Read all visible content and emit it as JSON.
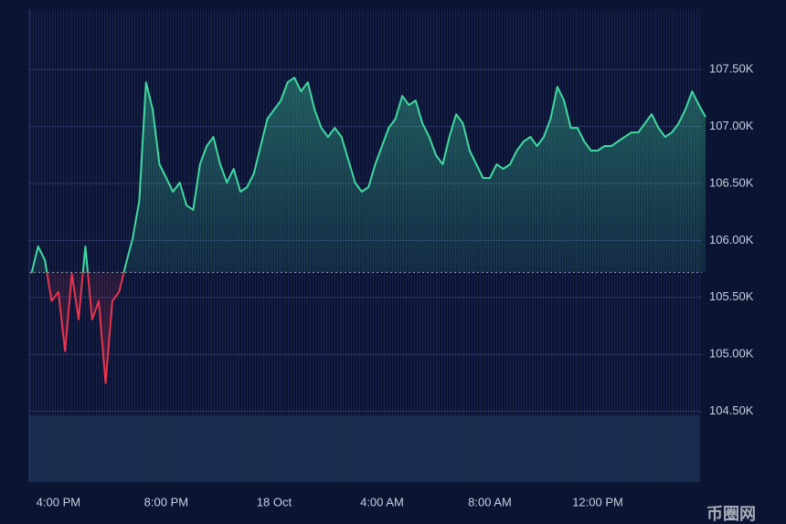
{
  "chart_data": {
    "type": "line",
    "x": [
      15,
      15.25,
      15.5,
      15.75,
      16,
      16.25,
      16.5,
      16.75,
      17,
      17.25,
      17.5,
      17.75,
      18,
      18.25,
      18.5,
      18.75,
      19,
      19.25,
      19.5,
      19.75,
      20,
      20.25,
      20.5,
      20.75,
      21,
      21.25,
      21.5,
      21.75,
      22,
      22.25,
      22.5,
      22.75,
      23,
      23.25,
      23.5,
      23.75,
      24,
      24.25,
      24.5,
      24.75,
      25,
      25.25,
      25.5,
      25.75,
      26,
      26.25,
      26.5,
      26.75,
      27,
      27.25,
      27.5,
      27.75,
      28,
      28.25,
      28.5,
      28.75,
      29,
      29.25,
      29.5,
      29.75,
      30,
      30.25,
      30.5,
      30.75,
      31,
      31.25,
      31.5,
      31.75,
      32,
      32.25,
      32.5,
      32.75,
      33,
      33.25,
      33.5,
      33.75,
      34,
      34.25,
      34.5,
      34.75,
      35,
      35.25,
      35.5,
      35.75,
      36,
      36.25,
      36.5,
      36.75,
      37,
      37.25,
      37.5,
      37.75,
      38,
      38.25,
      38.5,
      38.75,
      39,
      39.25,
      39.5,
      39.75,
      40
    ],
    "values": [
      105708,
      105948,
      105828,
      105468,
      105548,
      105028,
      105708,
      105308,
      105948,
      105308,
      105468,
      104748,
      105468,
      105548,
      105788,
      106012,
      106348,
      107388,
      107148,
      106668,
      106548,
      106428,
      106508,
      106308,
      106268,
      106668,
      106828,
      106908,
      106668,
      106508,
      106628,
      106428,
      106468,
      106588,
      106828,
      107068,
      107148,
      107228,
      107388,
      107428,
      107308,
      107388,
      107148,
      106988,
      106908,
      106988,
      106908,
      106708,
      106508,
      106428,
      106468,
      106668,
      106828,
      106988,
      107068,
      107268,
      107188,
      107228,
      107028,
      106908,
      106748,
      106668,
      106908,
      107108,
      107028,
      106788,
      106668,
      106548,
      106548,
      106668,
      106628,
      106668,
      106788,
      106868,
      106908,
      106828,
      106908,
      107068,
      107348,
      107228,
      106988,
      106988,
      106868,
      106788,
      106788,
      106828,
      106828,
      106868,
      106908,
      106948,
      106948,
      107028,
      107108,
      106988,
      106908,
      106948,
      107028,
      107148,
      107308,
      107188,
      107084
    ],
    "baseline": 105720,
    "up_color": "#3fd9a0",
    "down_color": "#e8344e",
    "xlim": [
      14.92,
      40.1
    ],
    "xticks": [
      {
        "value": 16,
        "label": "4:00 PM"
      },
      {
        "value": 20,
        "label": "8:00 PM"
      },
      {
        "value": 24,
        "label": "18 Oct"
      },
      {
        "value": 28,
        "label": "4:00 AM"
      },
      {
        "value": 32,
        "label": "8:00 AM"
      },
      {
        "value": 36,
        "label": "12:00 PM"
      }
    ],
    "ylim": [
      103880,
      108030
    ],
    "yticks": [
      {
        "value": 104500,
        "label": "104.50K"
      },
      {
        "value": 105000,
        "label": "105.00K"
      },
      {
        "value": 105500,
        "label": "105.50K"
      },
      {
        "value": 106000,
        "label": "106.00K"
      },
      {
        "value": 106500,
        "label": "106.50K"
      },
      {
        "value": 107000,
        "label": "107.00K"
      },
      {
        "value": 107500,
        "label": "107.50K"
      }
    ],
    "grid": true,
    "watermark": "币圈网"
  }
}
